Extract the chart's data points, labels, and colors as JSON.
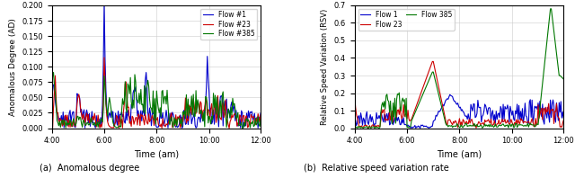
{
  "left": {
    "title": "(a)  Anomalous degree",
    "ylabel": "Anomalous Degree (AD)",
    "xlabel": "Time (am)",
    "ylim": [
      0.0,
      0.2
    ],
    "yticks": [
      0.0,
      0.025,
      0.05,
      0.075,
      0.1,
      0.125,
      0.15,
      0.175,
      0.2
    ],
    "xtick_labels": [
      "4:00",
      "6:00",
      "8:00",
      "10:00",
      "12:00"
    ],
    "legend": [
      {
        "label": "Flow #1",
        "color": "#0000cc"
      },
      {
        "label": "Flow #23",
        "color": "#cc0000"
      },
      {
        "label": "Flow #385",
        "color": "#007700"
      }
    ]
  },
  "right": {
    "title": "(b)  Relative speed variation rate",
    "ylabel": "Relative Speed Variation (RSV)",
    "xlabel": "Time (am)",
    "ylim": [
      0.0,
      0.7
    ],
    "yticks": [
      0.0,
      0.1,
      0.2,
      0.3,
      0.4,
      0.5,
      0.6,
      0.7
    ],
    "xtick_labels": [
      "4:00",
      "6:00",
      "8:00",
      "10:00",
      "12:00"
    ],
    "legend_col1": [
      {
        "label": "Flow 1",
        "color": "#0000cc"
      },
      {
        "label": "Flow 23",
        "color": "#cc0000"
      }
    ],
    "legend_col2": [
      {
        "label": "Flow 385",
        "color": "#007700"
      }
    ]
  },
  "n_points": 240
}
